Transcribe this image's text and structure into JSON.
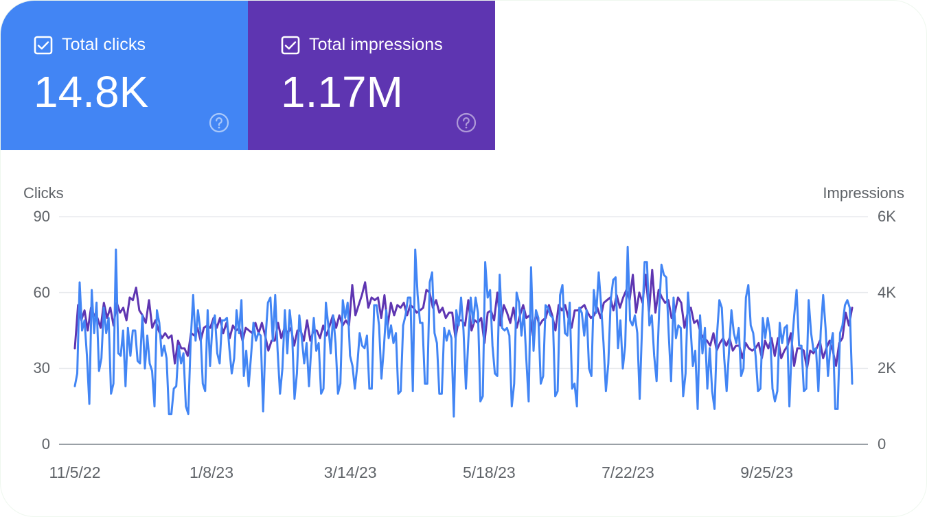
{
  "cards": [
    {
      "label": "Total clicks",
      "value": "14.8K",
      "checked": true,
      "color": "#4285f4",
      "checkbox_icon": "checkbox-checked-icon",
      "help_icon": "help-circle-icon"
    },
    {
      "label": "Total impressions",
      "value": "1.17M",
      "checked": true,
      "color": "#5e35b1",
      "checkbox_icon": "checkbox-checked-icon",
      "help_icon": "help-circle-icon"
    }
  ],
  "chart_data": {
    "type": "line",
    "title": "",
    "grid": true,
    "legend": "none",
    "xlabel": "",
    "x_range_days": [
      0,
      364
    ],
    "x_ticks": [
      {
        "day": 0,
        "label": "11/5/22"
      },
      {
        "day": 64,
        "label": "1/8/23"
      },
      {
        "day": 129,
        "label": "3/14/23"
      },
      {
        "day": 194,
        "label": "5/18/23"
      },
      {
        "day": 259,
        "label": "7/22/23"
      },
      {
        "day": 324,
        "label": "9/25/23"
      }
    ],
    "left_axis": {
      "label": "Clicks",
      "range": [
        0,
        90
      ],
      "ticks": [
        {
          "value": 90,
          "label": "90"
        },
        {
          "value": 60,
          "label": "60"
        },
        {
          "value": 30,
          "label": "30"
        },
        {
          "value": 0,
          "label": "0"
        }
      ]
    },
    "right_axis": {
      "label": "Impressions",
      "range": [
        0,
        6000
      ],
      "ticks": [
        {
          "value": 6000,
          "label": "6K"
        },
        {
          "value": 4000,
          "label": "4K"
        },
        {
          "value": 2000,
          "label": "2K"
        },
        {
          "value": 0,
          "label": "0"
        }
      ]
    },
    "series": [
      {
        "name": "Impressions",
        "axis": "right",
        "color": "#5e35b1",
        "values": [
          2530,
          3670,
          3270,
          3530,
          3000,
          3600,
          3400,
          3330,
          3070,
          3730,
          3330,
          3600,
          3130,
          3730,
          3470,
          3600,
          3270,
          3870,
          3800,
          4130,
          3530,
          3400,
          3200,
          3800,
          3070,
          3270,
          3000,
          2800,
          2930,
          2800,
          2870,
          2130,
          2730,
          2530,
          2530,
          2330,
          2930,
          2870,
          3070,
          2730,
          3070,
          3130,
          3070,
          3330,
          3070,
          3330,
          2930,
          3200,
          2800,
          3130,
          3000,
          3070,
          2730,
          3070,
          3000,
          2930,
          3200,
          2930,
          3200,
          2870,
          2470,
          2730,
          2730,
          3200,
          2800,
          3070,
          2930,
          3070,
          2600,
          3000,
          3000,
          2730,
          3270,
          2730,
          3000,
          3000,
          2800,
          3130,
          2870,
          3130,
          3400,
          3070,
          3400,
          3130,
          3270,
          3130,
          4200,
          3400,
          3670,
          3930,
          4270,
          3600,
          3870,
          3800,
          3870,
          3330,
          3930,
          3130,
          3730,
          3400,
          3670,
          3600,
          3730,
          3400,
          3670,
          3600,
          3470,
          3530,
          3600,
          4070,
          4000,
          3600,
          3800,
          3470,
          3600,
          3330,
          3470,
          3470,
          2800,
          3270,
          3270,
          3130,
          3800,
          3000,
          3270,
          3200,
          3330,
          2670,
          3470,
          3530,
          3270,
          4000,
          3130,
          3670,
          3470,
          3200,
          3600,
          3070,
          3400,
          3670,
          3330,
          3400,
          2870,
          3470,
          3130,
          3270,
          3330,
          3670,
          3400,
          3000,
          3670,
          3530,
          3670,
          3330,
          3070,
          3530,
          3530,
          3600,
          3670,
          3470,
          3330,
          3400,
          3600,
          3330,
          3730,
          3800,
          3870,
          3530,
          3930,
          3600,
          3870,
          4070,
          3800,
          4470,
          3470,
          4000,
          3730,
          4470,
          3470,
          4600,
          3470,
          4070,
          3870,
          3730,
          3800,
          3330,
          3470,
          3870,
          3730,
          3070,
          3470,
          3600,
          3200,
          3270,
          2930,
          2800,
          2730,
          2600,
          2930,
          2470,
          2670,
          2800,
          2600,
          2800,
          2470,
          2600,
          2600,
          2270,
          2670,
          2530,
          2470,
          2530,
          2670,
          2270,
          2730,
          2530,
          2800,
          2330,
          2800,
          2270,
          2470,
          2600,
          2930,
          2070,
          2530,
          2530,
          2470,
          2000,
          2470,
          2400,
          2530,
          2730,
          2270,
          2530,
          2730,
          2470,
          2070,
          2670,
          2800,
          3470,
          3130,
          3600
        ]
      },
      {
        "name": "Clicks",
        "axis": "left",
        "color": "#4285f4",
        "values": [
          23,
          28,
          64,
          45,
          49,
          35,
          16,
          61,
          44,
          56,
          29,
          34,
          54,
          44,
          50,
          20,
          24,
          77,
          36,
          35,
          45,
          23,
          46,
          35,
          45,
          45,
          33,
          32,
          51,
          30,
          43,
          32,
          29,
          15,
          53,
          48,
          35,
          39,
          34,
          12,
          12,
          22,
          23,
          39,
          32,
          36,
          15,
          12,
          41,
          59,
          41,
          53,
          45,
          24,
          21,
          53,
          31,
          47,
          51,
          36,
          32,
          49,
          49,
          50,
          38,
          28,
          34,
          53,
          44,
          57,
          27,
          37,
          23,
          35,
          48,
          41,
          44,
          43,
          13,
          42,
          56,
          58,
          41,
          59,
          37,
          20,
          30,
          53,
          36,
          53,
          44,
          18,
          28,
          51,
          42,
          32,
          40,
          23,
          39,
          50,
          37,
          40,
          20,
          22,
          56,
          47,
          36,
          51,
          40,
          20,
          24,
          57,
          50,
          56,
          35,
          31,
          22,
          31,
          44,
          39,
          38,
          43,
          22,
          22,
          55,
          55,
          47,
          26,
          38,
          53,
          42,
          47,
          40,
          44,
          20,
          21,
          47,
          51,
          58,
          58,
          21,
          77,
          59,
          48,
          48,
          24,
          24,
          64,
          68,
          44,
          40,
          20,
          20,
          46,
          41,
          45,
          42,
          11,
          53,
          47,
          58,
          45,
          22,
          41,
          58,
          48,
          58,
          52,
          17,
          19,
          72,
          58,
          61,
          39,
          28,
          27,
          67,
          46,
          45,
          46,
          43,
          15,
          24,
          60,
          56,
          43,
          53,
          34,
          17,
          70,
          37,
          53,
          50,
          24,
          27,
          55,
          54,
          51,
          50,
          19,
          21,
          59,
          63,
          44,
          43,
          56,
          22,
          24,
          15,
          54,
          52,
          43,
          53,
          30,
          27,
          61,
          52,
          68,
          55,
          40,
          21,
          32,
          57,
          65,
          66,
          38,
          49,
          30,
          39,
          78,
          49,
          47,
          51,
          44,
          18,
          47,
          72,
          72,
          47,
          51,
          35,
          25,
          52,
          71,
          67,
          66,
          44,
          25,
          58,
          42,
          47,
          46,
          19,
          28,
          60,
          47,
          31,
          37,
          14,
          51,
          36,
          46,
          22,
          38,
          21,
          14,
          43,
          57,
          54,
          34,
          21,
          37,
          53,
          44,
          40,
          46,
          27,
          30,
          58,
          63,
          47,
          44,
          35,
          21,
          22,
          50,
          42,
          50,
          44,
          22,
          17,
          21,
          48,
          40,
          46,
          47,
          15,
          39,
          51,
          61,
          39,
          39,
          21,
          22,
          57,
          44,
          37,
          38,
          21,
          45,
          59,
          46,
          27,
          39,
          44,
          14,
          14,
          44,
          47,
          55,
          57,
          54,
          24
        ]
      }
    ]
  }
}
